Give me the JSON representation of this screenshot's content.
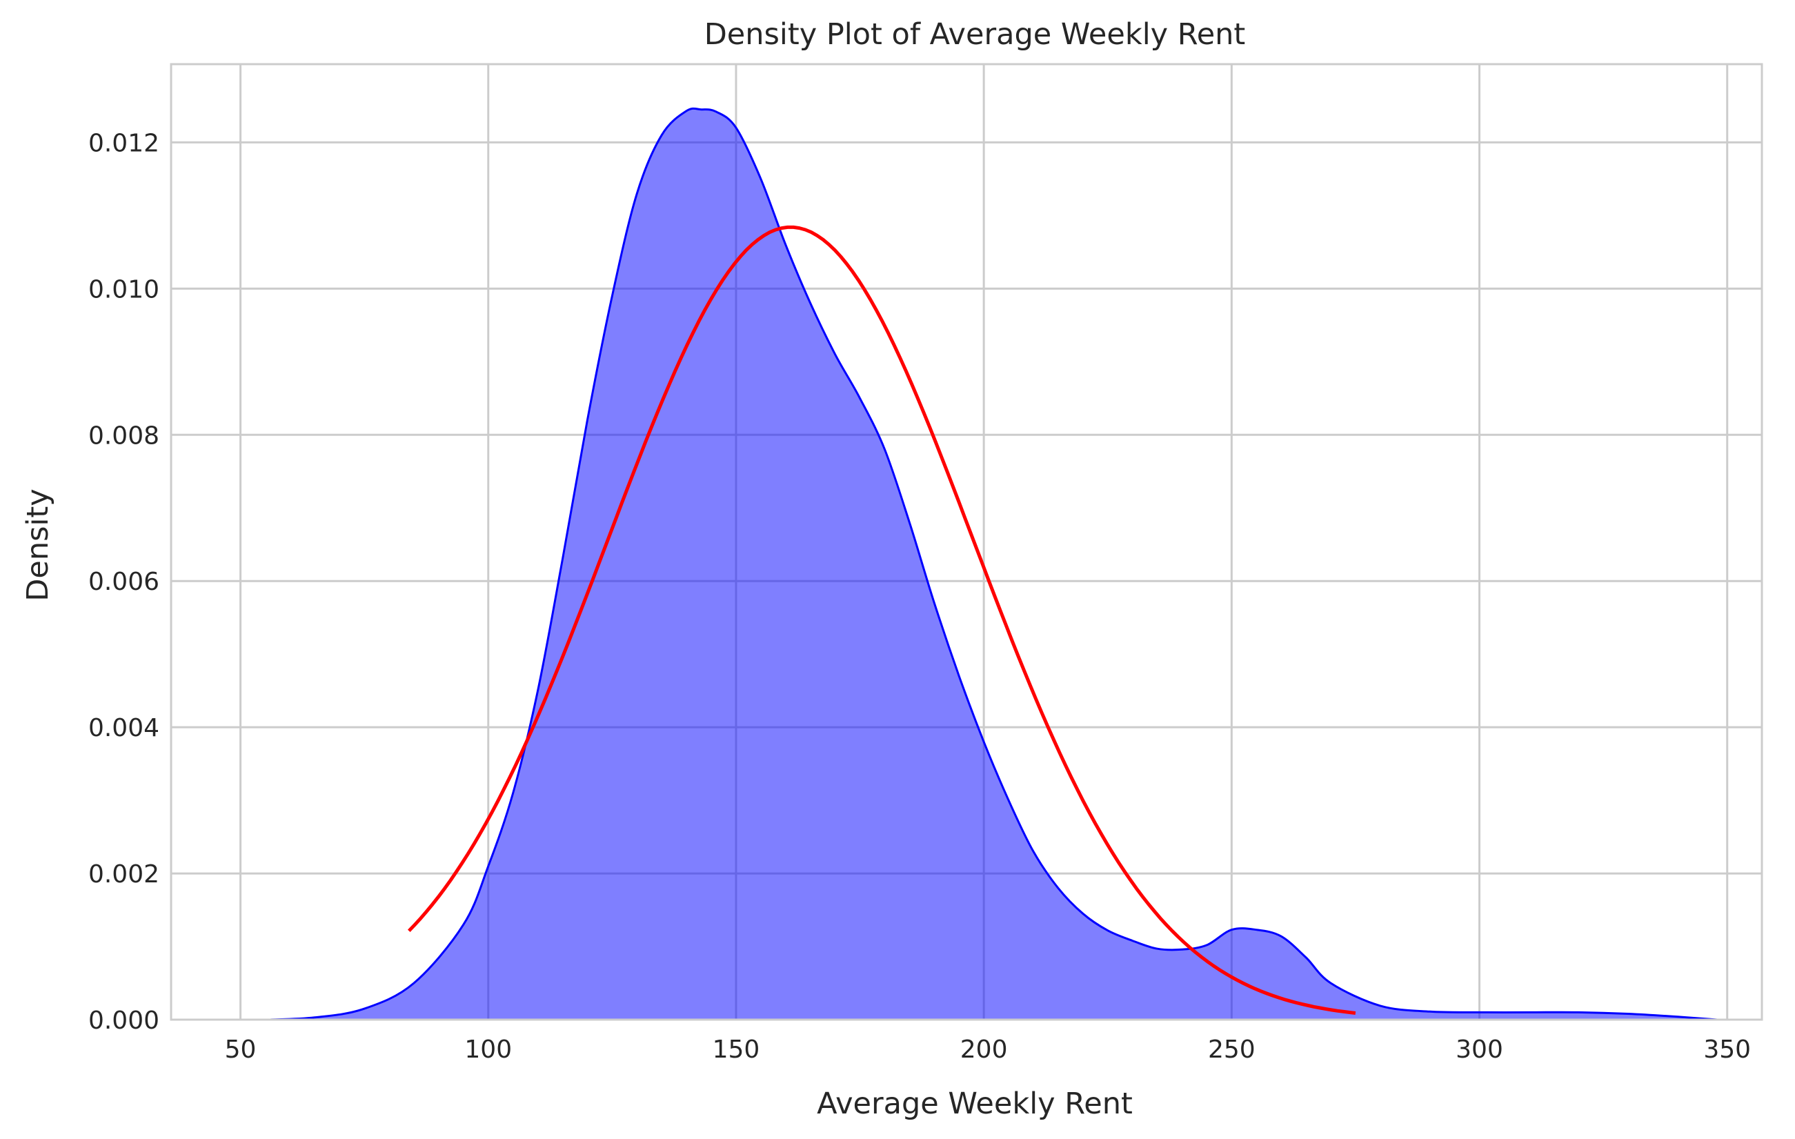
{
  "chart_data": {
    "type": "area",
    "title": "Density Plot of Average Weekly Rent",
    "xlabel": "Average Weekly Rent",
    "ylabel": "Density",
    "xlim": [
      36,
      357
    ],
    "ylim": [
      0,
      0.01307
    ],
    "x_ticks": [
      50,
      100,
      150,
      200,
      250,
      300,
      350
    ],
    "y_ticks": [
      0.0,
      0.002,
      0.004,
      0.006,
      0.008,
      0.01,
      0.012
    ],
    "x_tick_labels": [
      "50",
      "100",
      "150",
      "200",
      "250",
      "300",
      "350"
    ],
    "y_tick_labels": [
      "0.000",
      "0.002",
      "0.004",
      "0.006",
      "0.008",
      "0.010",
      "0.012"
    ],
    "grid": true,
    "series": [
      {
        "kind": "kde_filled",
        "color": "#0000ff",
        "fill_color": "#0000ff",
        "fill_opacity": 0.5,
        "x": [
          56,
          65,
          75,
          85,
          95,
          100,
          105,
          110,
          115,
          120,
          125,
          130,
          135,
          140,
          143,
          146,
          150,
          155,
          160,
          165,
          170,
          175,
          180,
          185,
          190,
          195,
          200,
          205,
          210,
          215,
          220,
          225,
          230,
          235,
          240,
          245,
          250,
          255,
          260,
          265,
          270,
          280,
          290,
          300,
          310,
          320,
          330,
          340,
          348
        ],
        "y": [
          0.0,
          3e-05,
          0.00015,
          0.0005,
          0.0013,
          0.0021,
          0.0031,
          0.0045,
          0.0063,
          0.0082,
          0.0099,
          0.0113,
          0.0121,
          0.01243,
          0.01245,
          0.01242,
          0.0122,
          0.0115,
          0.0106,
          0.0098,
          0.0091,
          0.0085,
          0.0078,
          0.0068,
          0.0057,
          0.0047,
          0.0038,
          0.003,
          0.0023,
          0.0018,
          0.00145,
          0.00122,
          0.00108,
          0.00097,
          0.00096,
          0.00102,
          0.00123,
          0.00123,
          0.00114,
          0.00085,
          0.0005,
          0.00019,
          0.00011,
          0.0001,
          0.0001,
          0.0001,
          8e-05,
          4e-05,
          0.0
        ]
      },
      {
        "kind": "normal_fit",
        "color": "#ff0000",
        "mean": 161,
        "sd": 36.8,
        "x_range": [
          84,
          275
        ]
      }
    ]
  }
}
